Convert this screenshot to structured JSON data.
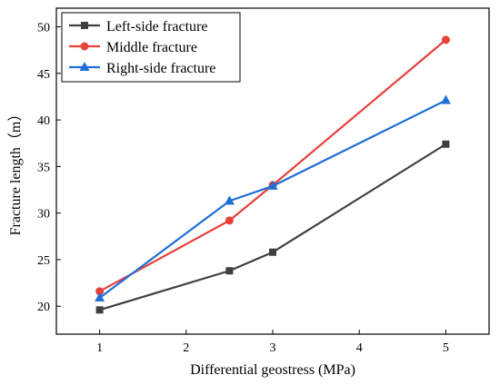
{
  "chart_data": {
    "type": "line",
    "xlabel": "Differential geostress (MPa)",
    "ylabel": "Fracture length（m）",
    "xlim": [
      0.5,
      5.5
    ],
    "ylim": [
      17,
      52
    ],
    "xticks": [
      1,
      2,
      3,
      4,
      5
    ],
    "yticks": [
      20,
      25,
      30,
      35,
      40,
      45,
      50
    ],
    "grid": false,
    "legend_position": "top-left",
    "x": [
      1,
      2.5,
      3,
      5
    ],
    "series": [
      {
        "name": "Left-side fracture",
        "values": [
          19.6,
          23.8,
          25.8,
          37.4
        ],
        "color": "#3f3f3f",
        "marker": "square"
      },
      {
        "name": "Middle fracture",
        "values": [
          21.6,
          29.2,
          33.0,
          48.6
        ],
        "color": "#e8413c",
        "marker": "circle"
      },
      {
        "name": "Right-side fracture",
        "values": [
          20.9,
          31.3,
          32.9,
          42.1
        ],
        "color": "#1f6fd6",
        "marker": "triangle"
      }
    ]
  }
}
